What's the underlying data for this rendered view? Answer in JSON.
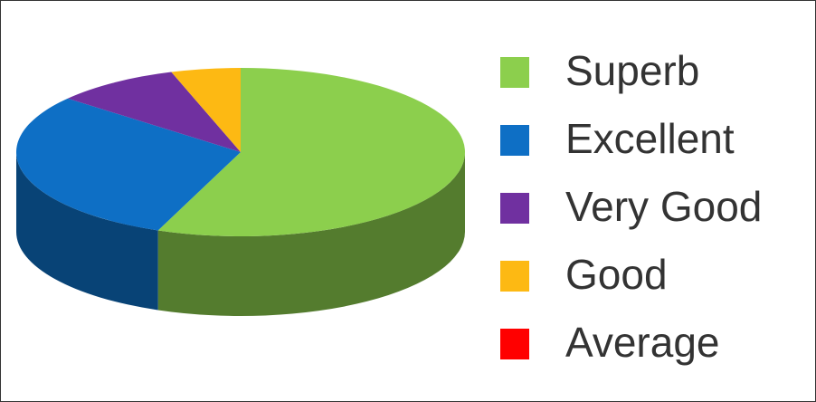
{
  "chart_data": {
    "type": "pie",
    "categories": [
      "Superb",
      "Excellent",
      "Very Good",
      "Good",
      "Average"
    ],
    "values": [
      56,
      30,
      9,
      5,
      0
    ],
    "colors": [
      "#8ccf4d",
      "#0e6fc5",
      "#7030a0",
      "#fdb913",
      "#ff0000"
    ],
    "legend": "right"
  }
}
